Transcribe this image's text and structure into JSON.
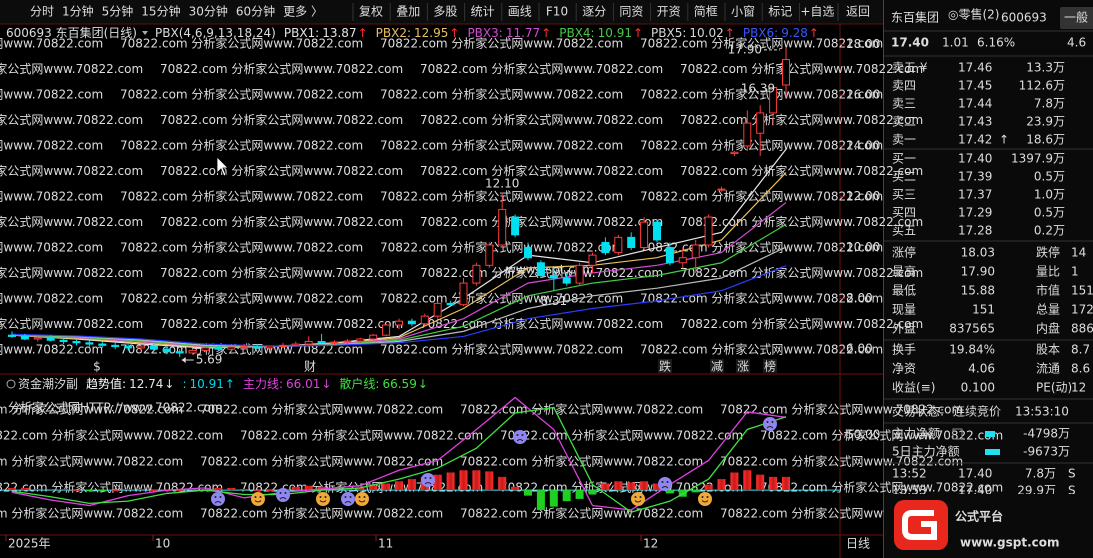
{
  "toolbar": {
    "periods": [
      "分时",
      "1分钟",
      "5分钟",
      "15分钟",
      "30分钟",
      "60分钟"
    ],
    "more": "更多 〉",
    "buttons": [
      "复权",
      "叠加",
      "多股",
      "统计",
      "画线",
      "F10",
      "逐分",
      "同资",
      "开资",
      "简框",
      "小窗",
      "标记",
      "+自选"
    ],
    "back": "返回"
  },
  "watermark": {
    "main": "70822.com 分析家公式网www.70822.com",
    "sub": "分析家公式网HTTP://www.70822.com",
    "site": "www.gspt.com"
  },
  "main_chart": {
    "header": {
      "symbol": "600693 东百集团(日线)",
      "indicator": "PBX(4,6,9,13,18,24)",
      "items": [
        {
          "label": "PBX1:",
          "value": 13.87,
          "arrow": "↑",
          "color": "#e6e6e6"
        },
        {
          "label": "PBX2:",
          "value": 12.95,
          "arrow": "↑",
          "color": "#e8c060"
        },
        {
          "label": "PBX3:",
          "value": 11.77,
          "arrow": "↑",
          "color": "#d44ad4"
        },
        {
          "label": "PBX4:",
          "value": 10.91,
          "arrow": "↑",
          "color": "#44cc44"
        },
        {
          "label": "PBX5:",
          "value": 10.02,
          "arrow": "↑",
          "color": "#d8d8d8"
        },
        {
          "label": "PBX6:",
          "value": 9.28,
          "arrow": "↑",
          "color": "#3a55ff"
        }
      ]
    },
    "ylim": [
      5.1,
      18.8
    ],
    "yticks": [
      {
        "value": 6,
        "label": "6.00"
      },
      {
        "value": 8,
        "label": "8.00"
      },
      {
        "value": 10,
        "label": "10.00"
      },
      {
        "value": 12,
        "label": "12.00"
      },
      {
        "value": 14,
        "label": "14.00"
      },
      {
        "value": 16,
        "label": "16.00"
      },
      {
        "value": 18,
        "label": "18.00"
      }
    ],
    "candles": [
      [
        6.55,
        6.7,
        6.45,
        6.5
      ],
      [
        6.5,
        6.6,
        6.35,
        6.4
      ],
      [
        6.4,
        6.5,
        6.3,
        6.45
      ],
      [
        6.45,
        6.55,
        6.3,
        6.35
      ],
      [
        6.35,
        6.45,
        6.2,
        6.3
      ],
      [
        6.3,
        6.4,
        6.15,
        6.25
      ],
      [
        6.25,
        6.35,
        6.1,
        6.2
      ],
      [
        6.2,
        6.3,
        6.05,
        6.15
      ],
      [
        6.15,
        6.25,
        6.0,
        6.1
      ],
      [
        6.1,
        6.2,
        5.95,
        6.05
      ],
      [
        6.05,
        6.15,
        5.9,
        6.12
      ],
      [
        6.12,
        6.2,
        5.95,
        6.0
      ],
      [
        6.0,
        6.1,
        5.8,
        5.9
      ],
      [
        5.9,
        6.0,
        5.69,
        5.85
      ],
      [
        5.85,
        6.0,
        5.8,
        5.95
      ],
      [
        5.95,
        6.1,
        5.9,
        6.05
      ],
      [
        6.05,
        6.15,
        5.95,
        6.0
      ],
      [
        6.0,
        6.1,
        5.92,
        6.08
      ],
      [
        6.08,
        6.2,
        6.0,
        6.1
      ],
      [
        6.1,
        6.2,
        6.0,
        6.05
      ],
      [
        6.05,
        6.15,
        5.95,
        6.12
      ],
      [
        6.12,
        6.25,
        6.05,
        6.15
      ],
      [
        6.15,
        6.3,
        6.1,
        6.2
      ],
      [
        6.2,
        6.5,
        6.15,
        6.3
      ],
      [
        6.3,
        6.6,
        6.2,
        6.25
      ],
      [
        6.25,
        6.35,
        6.15,
        6.28
      ],
      [
        6.28,
        6.4,
        6.2,
        6.32
      ],
      [
        6.32,
        6.45,
        6.25,
        6.4
      ],
      [
        6.4,
        6.6,
        6.35,
        6.55
      ],
      [
        6.55,
        7.0,
        6.5,
        6.95
      ],
      [
        6.95,
        7.2,
        6.8,
        7.1
      ],
      [
        7.1,
        7.2,
        6.9,
        7.0
      ],
      [
        7.0,
        7.4,
        6.95,
        7.3
      ],
      [
        7.3,
        7.9,
        7.2,
        7.8
      ],
      [
        7.8,
        7.9,
        7.7,
        7.75
      ],
      [
        7.75,
        8.8,
        7.7,
        8.6
      ],
      [
        8.6,
        9.4,
        8.5,
        9.3
      ],
      [
        9.3,
        10.2,
        9.2,
        10.1
      ],
      [
        10.1,
        12.1,
        10.0,
        11.5
      ],
      [
        11.2,
        11.3,
        10.4,
        10.5
      ],
      [
        10.0,
        10.2,
        9.5,
        9.6
      ],
      [
        9.4,
        9.5,
        8.8,
        8.9
      ],
      [
        8.9,
        9.2,
        8.31,
        8.8
      ],
      [
        8.8,
        9.0,
        8.5,
        8.6
      ],
      [
        8.6,
        9.4,
        8.5,
        9.3
      ],
      [
        9.3,
        9.8,
        9.0,
        9.7
      ],
      [
        10.2,
        10.4,
        9.7,
        9.8
      ],
      [
        9.8,
        10.5,
        9.7,
        10.4
      ],
      [
        10.4,
        10.6,
        9.9,
        10.0
      ],
      [
        10.0,
        11.2,
        9.9,
        11.0
      ],
      [
        11.0,
        11.1,
        10.2,
        10.3
      ],
      [
        10.0,
        10.2,
        9.3,
        9.4
      ],
      [
        9.4,
        10.0,
        9.2,
        9.6
      ],
      [
        9.6,
        10.3,
        9.0,
        10.1
      ],
      [
        10.1,
        11.3,
        10.0,
        11.2
      ],
      [
        12.3,
        12.4,
        12.2,
        12.3
      ],
      [
        13.7,
        13.8,
        13.6,
        13.75
      ],
      [
        14.0,
        15.4,
        13.8,
        14.9
      ],
      [
        14.5,
        15.6,
        13.6,
        15.3
      ],
      [
        15.3,
        16.39,
        14.8,
        16.3
      ],
      [
        16.4,
        17.9,
        15.9,
        17.4
      ]
    ],
    "ma_candles": [
      0,
      5,
      10,
      15,
      20,
      25,
      30,
      35,
      40,
      45,
      50,
      55,
      60
    ],
    "ma": [
      {
        "color": "#e6e6e6",
        "values": [
          6.55,
          6.4,
          6.2,
          6.05,
          6.1,
          6.25,
          6.5,
          8.0,
          9.7,
          9.4,
          10.0,
          10.6,
          13.87
        ]
      },
      {
        "color": "#e8c060",
        "values": [
          6.55,
          6.42,
          6.25,
          6.08,
          6.1,
          6.22,
          6.45,
          7.6,
          9.2,
          9.3,
          9.6,
          10.3,
          12.95
        ]
      },
      {
        "color": "#d44ad4",
        "values": [
          6.55,
          6.45,
          6.3,
          6.1,
          6.1,
          6.2,
          6.4,
          7.2,
          8.6,
          9.0,
          9.3,
          9.8,
          11.77
        ]
      },
      {
        "color": "#44cc44",
        "values": [
          6.56,
          6.47,
          6.33,
          6.12,
          6.1,
          6.18,
          6.35,
          6.9,
          8.1,
          8.6,
          8.9,
          9.4,
          10.91
        ]
      },
      {
        "color": "#bbbbbb",
        "values": [
          6.57,
          6.5,
          6.36,
          6.15,
          6.1,
          6.16,
          6.3,
          6.7,
          7.6,
          8.1,
          8.4,
          8.8,
          10.02
        ]
      },
      {
        "color": "#2a3cff",
        "values": [
          6.58,
          6.52,
          6.4,
          6.2,
          6.12,
          6.15,
          6.25,
          6.5,
          7.2,
          7.6,
          7.9,
          8.3,
          9.28
        ]
      }
    ],
    "annotations": [
      {
        "value": 12.1,
        "label": "12.10",
        "color": "#ff4040"
      },
      {
        "value": 8.31,
        "label": "8.31",
        "color": "#9fe8ff"
      },
      {
        "value": 5.69,
        "label": "5.69",
        "color": "#dddddd"
      },
      {
        "value": 16.39,
        "label": "16.39",
        "color": "#ff4040"
      },
      {
        "value": 17.9,
        "label": "17.90",
        "color": "#dddddd"
      }
    ],
    "events": [
      "$",
      "财",
      "跌",
      "减",
      "涨",
      "榜"
    ]
  },
  "indicator": {
    "header": {
      "name": "资金潮汐副",
      "items": [
        {
          "label": "趋势值:",
          "value": 12.74,
          "arrow": "↓",
          "color": "#e6e6e6"
        },
        {
          "label": ":",
          "value": 10.91,
          "arrow": "↑",
          "color": "#00d8f0"
        },
        {
          "label": "主力线:",
          "value": 66.01,
          "arrow": "↓",
          "color": "#e040e0"
        },
        {
          "label": "散户线:",
          "value": 66.59,
          "arrow": "↓",
          "color": "#40e040"
        }
      ]
    },
    "ylim": [
      -38,
      89
    ],
    "yticks": [
      {
        "value": 50,
        "label": "50.00"
      }
    ],
    "bars": [
      2,
      2,
      1,
      1,
      1,
      0,
      -1,
      -1,
      0,
      1,
      1,
      0,
      0,
      0,
      1,
      1,
      2,
      2,
      1,
      0,
      0,
      1,
      3,
      4,
      3,
      2,
      1,
      2,
      4,
      6,
      8,
      10,
      12,
      14,
      16,
      18,
      18,
      17,
      12,
      3,
      -5,
      -18,
      -15,
      -10,
      -8,
      -4,
      6,
      8,
      7,
      8,
      6,
      -3,
      -6,
      -2,
      5,
      10,
      16,
      18,
      14,
      12,
      12
    ],
    "line_candles": [
      0,
      3,
      6,
      9,
      12,
      15,
      18,
      21,
      24,
      27,
      30,
      33,
      36,
      39,
      42,
      45,
      48,
      51,
      54,
      57,
      60
    ],
    "lines": [
      {
        "color": "#e040e0",
        "values": [
          -2,
          -9,
          -14,
          -5,
          0,
          2,
          -7,
          -2,
          1,
          4,
          18,
          27,
          55,
          84,
          55,
          -14,
          -18,
          5,
          27,
          71,
          66.01
        ]
      },
      {
        "color": "#40e040",
        "values": [
          -1,
          -6,
          -12,
          -10,
          -3,
          0,
          -4,
          -4,
          0,
          2,
          10,
          20,
          38,
          70,
          75,
          5,
          -20,
          -10,
          10,
          55,
          66.59
        ]
      }
    ]
  },
  "x_axis": {
    "labels": [
      "2025年",
      "10",
      "11",
      "12"
    ],
    "period": "日线"
  },
  "right_panel": {
    "quote_header": {
      "name": "东百集团",
      "tag": "◎零售(2)",
      "code": "600693",
      "board": "一般"
    },
    "price": {
      "last": "17.40",
      "change": "1.01",
      "pct": "6.16%",
      "extra": "4.6"
    },
    "asks": [
      {
        "label": "卖五 ¥",
        "price": "17.46",
        "volume": "13.3万"
      },
      {
        "label": "卖四",
        "price": "17.45",
        "volume": "112.6万"
      },
      {
        "label": "卖三",
        "price": "17.44",
        "volume": "7.8万"
      },
      {
        "label": "卖二",
        "price": "17.43",
        "volume": "23.9万"
      },
      {
        "label": "卖一",
        "price": "17.42",
        "volume": "18.6万",
        "arrow": "↑"
      }
    ],
    "bids": [
      {
        "label": "买一",
        "price": "17.40",
        "volume": "1397.9万"
      },
      {
        "label": "买二",
        "price": "17.39",
        "volume": "0.5万"
      },
      {
        "label": "买三",
        "price": "17.37",
        "volume": "1.0万"
      },
      {
        "label": "买四",
        "price": "17.29",
        "volume": "0.5万"
      },
      {
        "label": "买五",
        "price": "17.28",
        "volume": "0.2万"
      }
    ],
    "stats": [
      [
        "涨停",
        "18.03",
        "跌停",
        "14"
      ],
      [
        "最高",
        "17.90",
        "量比",
        "1"
      ],
      [
        "最低",
        "15.88",
        "市值",
        "151."
      ],
      [
        "现量",
        "151",
        "总量",
        "172."
      ],
      [
        "外盘",
        "837565",
        "内盘",
        "886"
      ]
    ],
    "stats2": [
      [
        "换手",
        "19.84%",
        "股本",
        "8.7"
      ],
      [
        "净资",
        "4.06",
        "流通",
        "8.6"
      ],
      [
        "收益(≡)",
        "0.100",
        "PE(动)",
        "12"
      ]
    ],
    "status": {
      "label": "交易状态:",
      "value": "连续竞价",
      "time": "13:53:10"
    },
    "flows": [
      {
        "label": "主力净额",
        "value": "-4798万"
      },
      {
        "label": "5日主力净额",
        "value": "-9673万"
      }
    ],
    "trades": [
      [
        "13:52",
        "17.40",
        "7.8万",
        "S"
      ],
      [
        "13:53",
        "17.40",
        "29.9万",
        "S"
      ]
    ],
    "logo": "公式平台"
  }
}
